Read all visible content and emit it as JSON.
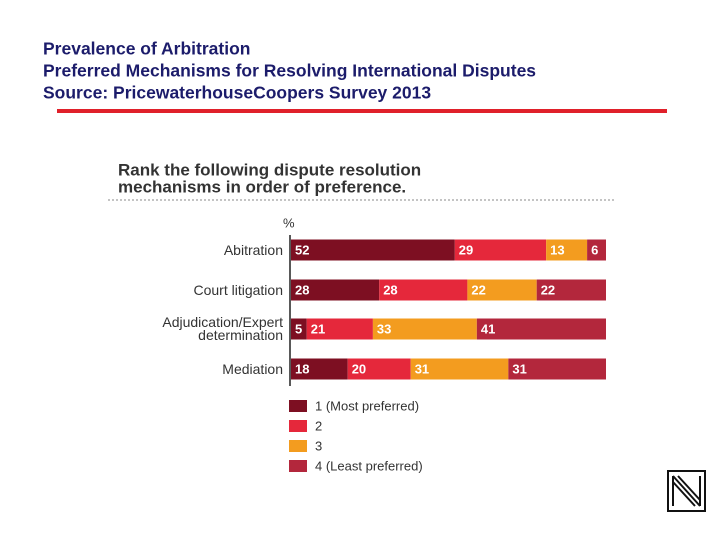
{
  "slide": {
    "title_lines": [
      "Prevalence of Arbitration",
      "Preferred Mechanisms for Resolving International Disputes",
      "Source:  PricewaterhouseCoopers Survey 2013"
    ]
  },
  "chart_data": {
    "type": "stacked-bar-horizontal",
    "title": [
      "Rank the following dispute resolution",
      "mechanisms in order of preference."
    ],
    "x_label": "%",
    "xlim": [
      0,
      100
    ],
    "categories": [
      "Abitration",
      "Court litigation",
      "Adjudication/Expert determination",
      "Mediation"
    ],
    "series": [
      {
        "name": "1 (Most preferred)",
        "color": "#7d0f22",
        "values": [
          52,
          28,
          5,
          18
        ]
      },
      {
        "name": "2",
        "color": "#e5283b",
        "values": [
          29,
          28,
          21,
          20
        ]
      },
      {
        "name": "3",
        "color": "#f39c1f",
        "values": [
          13,
          22,
          33,
          31
        ]
      },
      {
        "name": "4 (Least preferred)",
        "color": "#b3273c",
        "values": [
          6,
          22,
          41,
          31
        ]
      }
    ]
  }
}
